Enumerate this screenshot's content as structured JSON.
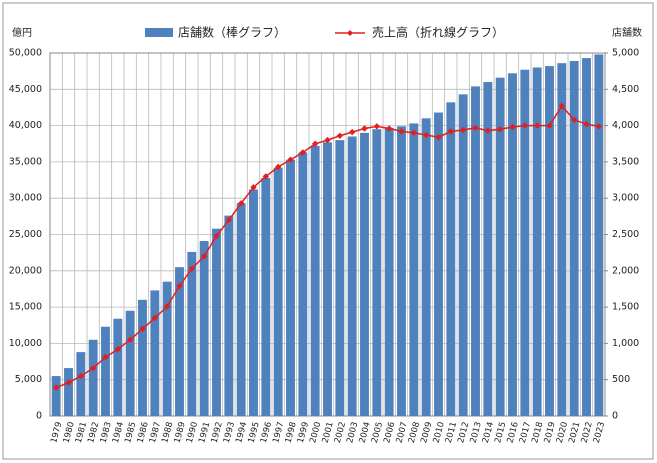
{
  "chart_data": {
    "type": "bar_line",
    "y_axis_label": "億円",
    "y2_axis_label": "店舗数",
    "categories": [
      "1979",
      "1980",
      "1981",
      "1982",
      "1983",
      "1984",
      "1985",
      "1986",
      "1987",
      "1988",
      "1989",
      "1990",
      "1991",
      "1992",
      "1993",
      "1994",
      "1995",
      "1996",
      "1997",
      "1998",
      "1999",
      "2000",
      "2001",
      "2002",
      "2003",
      "2004",
      "2005",
      "2006",
      "2007",
      "2008",
      "2009",
      "2010",
      "2011",
      "2012",
      "2013",
      "2014",
      "2015",
      "2016",
      "2017",
      "2018",
      "2019",
      "2020",
      "2021",
      "2022",
      "2023"
    ],
    "series": [
      {
        "name": "店舗数（棒グラフ）",
        "type": "bar",
        "axis": "y2",
        "color": "#4f81bd",
        "values": [
          550,
          660,
          880,
          1050,
          1230,
          1340,
          1450,
          1600,
          1730,
          1850,
          2050,
          2260,
          2410,
          2580,
          2760,
          2930,
          3120,
          3280,
          3420,
          3530,
          3630,
          3720,
          3770,
          3800,
          3850,
          3900,
          3950,
          3970,
          3990,
          4030,
          4100,
          4180,
          4320,
          4430,
          4540,
          4600,
          4660,
          4720,
          4770,
          4800,
          4820,
          4860,
          4890,
          4930,
          4980
        ]
      },
      {
        "name": "売上高（折れ線グラフ）",
        "type": "line",
        "axis": "y",
        "color": "#e02020",
        "values": [
          3900,
          4600,
          5500,
          6600,
          8100,
          9200,
          10500,
          12000,
          13500,
          15100,
          17900,
          20300,
          22000,
          24800,
          27000,
          29300,
          31500,
          33000,
          34300,
          35300,
          36300,
          37500,
          38000,
          38600,
          39100,
          39600,
          39900,
          39600,
          39200,
          39000,
          38700,
          38400,
          39200,
          39400,
          39700,
          39300,
          39500,
          39800,
          40000,
          40000,
          40000,
          42700,
          40800,
          40200,
          39900
        ]
      }
    ],
    "ylim": [
      0,
      50000
    ],
    "yticks": [
      0,
      {
        "value": 5000,
        "label": "5,000"
      },
      {
        "value": 10000,
        "label": "10,000"
      },
      {
        "value": 15000,
        "label": "15,000"
      },
      {
        "value": 20000,
        "label": "20,000"
      },
      {
        "value": 25000,
        "label": "25,000"
      },
      {
        "value": 30000,
        "label": "30,000"
      },
      {
        "value": 35000,
        "label": "35,000"
      },
      {
        "value": 40000,
        "label": "40,000"
      },
      {
        "value": 45000,
        "label": "45,000"
      },
      {
        "value": 50000,
        "label": "50,000"
      }
    ],
    "y2lim": [
      0,
      5000
    ],
    "y2ticks": [
      0,
      500,
      {
        "value": 1000,
        "label": "1,000"
      },
      {
        "value": 1500,
        "label": "1,500"
      },
      {
        "value": 2000,
        "label": "2,000"
      },
      {
        "value": 2500,
        "label": "2,500"
      },
      {
        "value": 3000,
        "label": "3,000"
      },
      {
        "value": 3500,
        "label": "3,500"
      },
      {
        "value": 4000,
        "label": "4,000"
      },
      {
        "value": 4500,
        "label": "4,500"
      },
      {
        "value": 5000,
        "label": "5,000"
      }
    ],
    "grid": true
  }
}
